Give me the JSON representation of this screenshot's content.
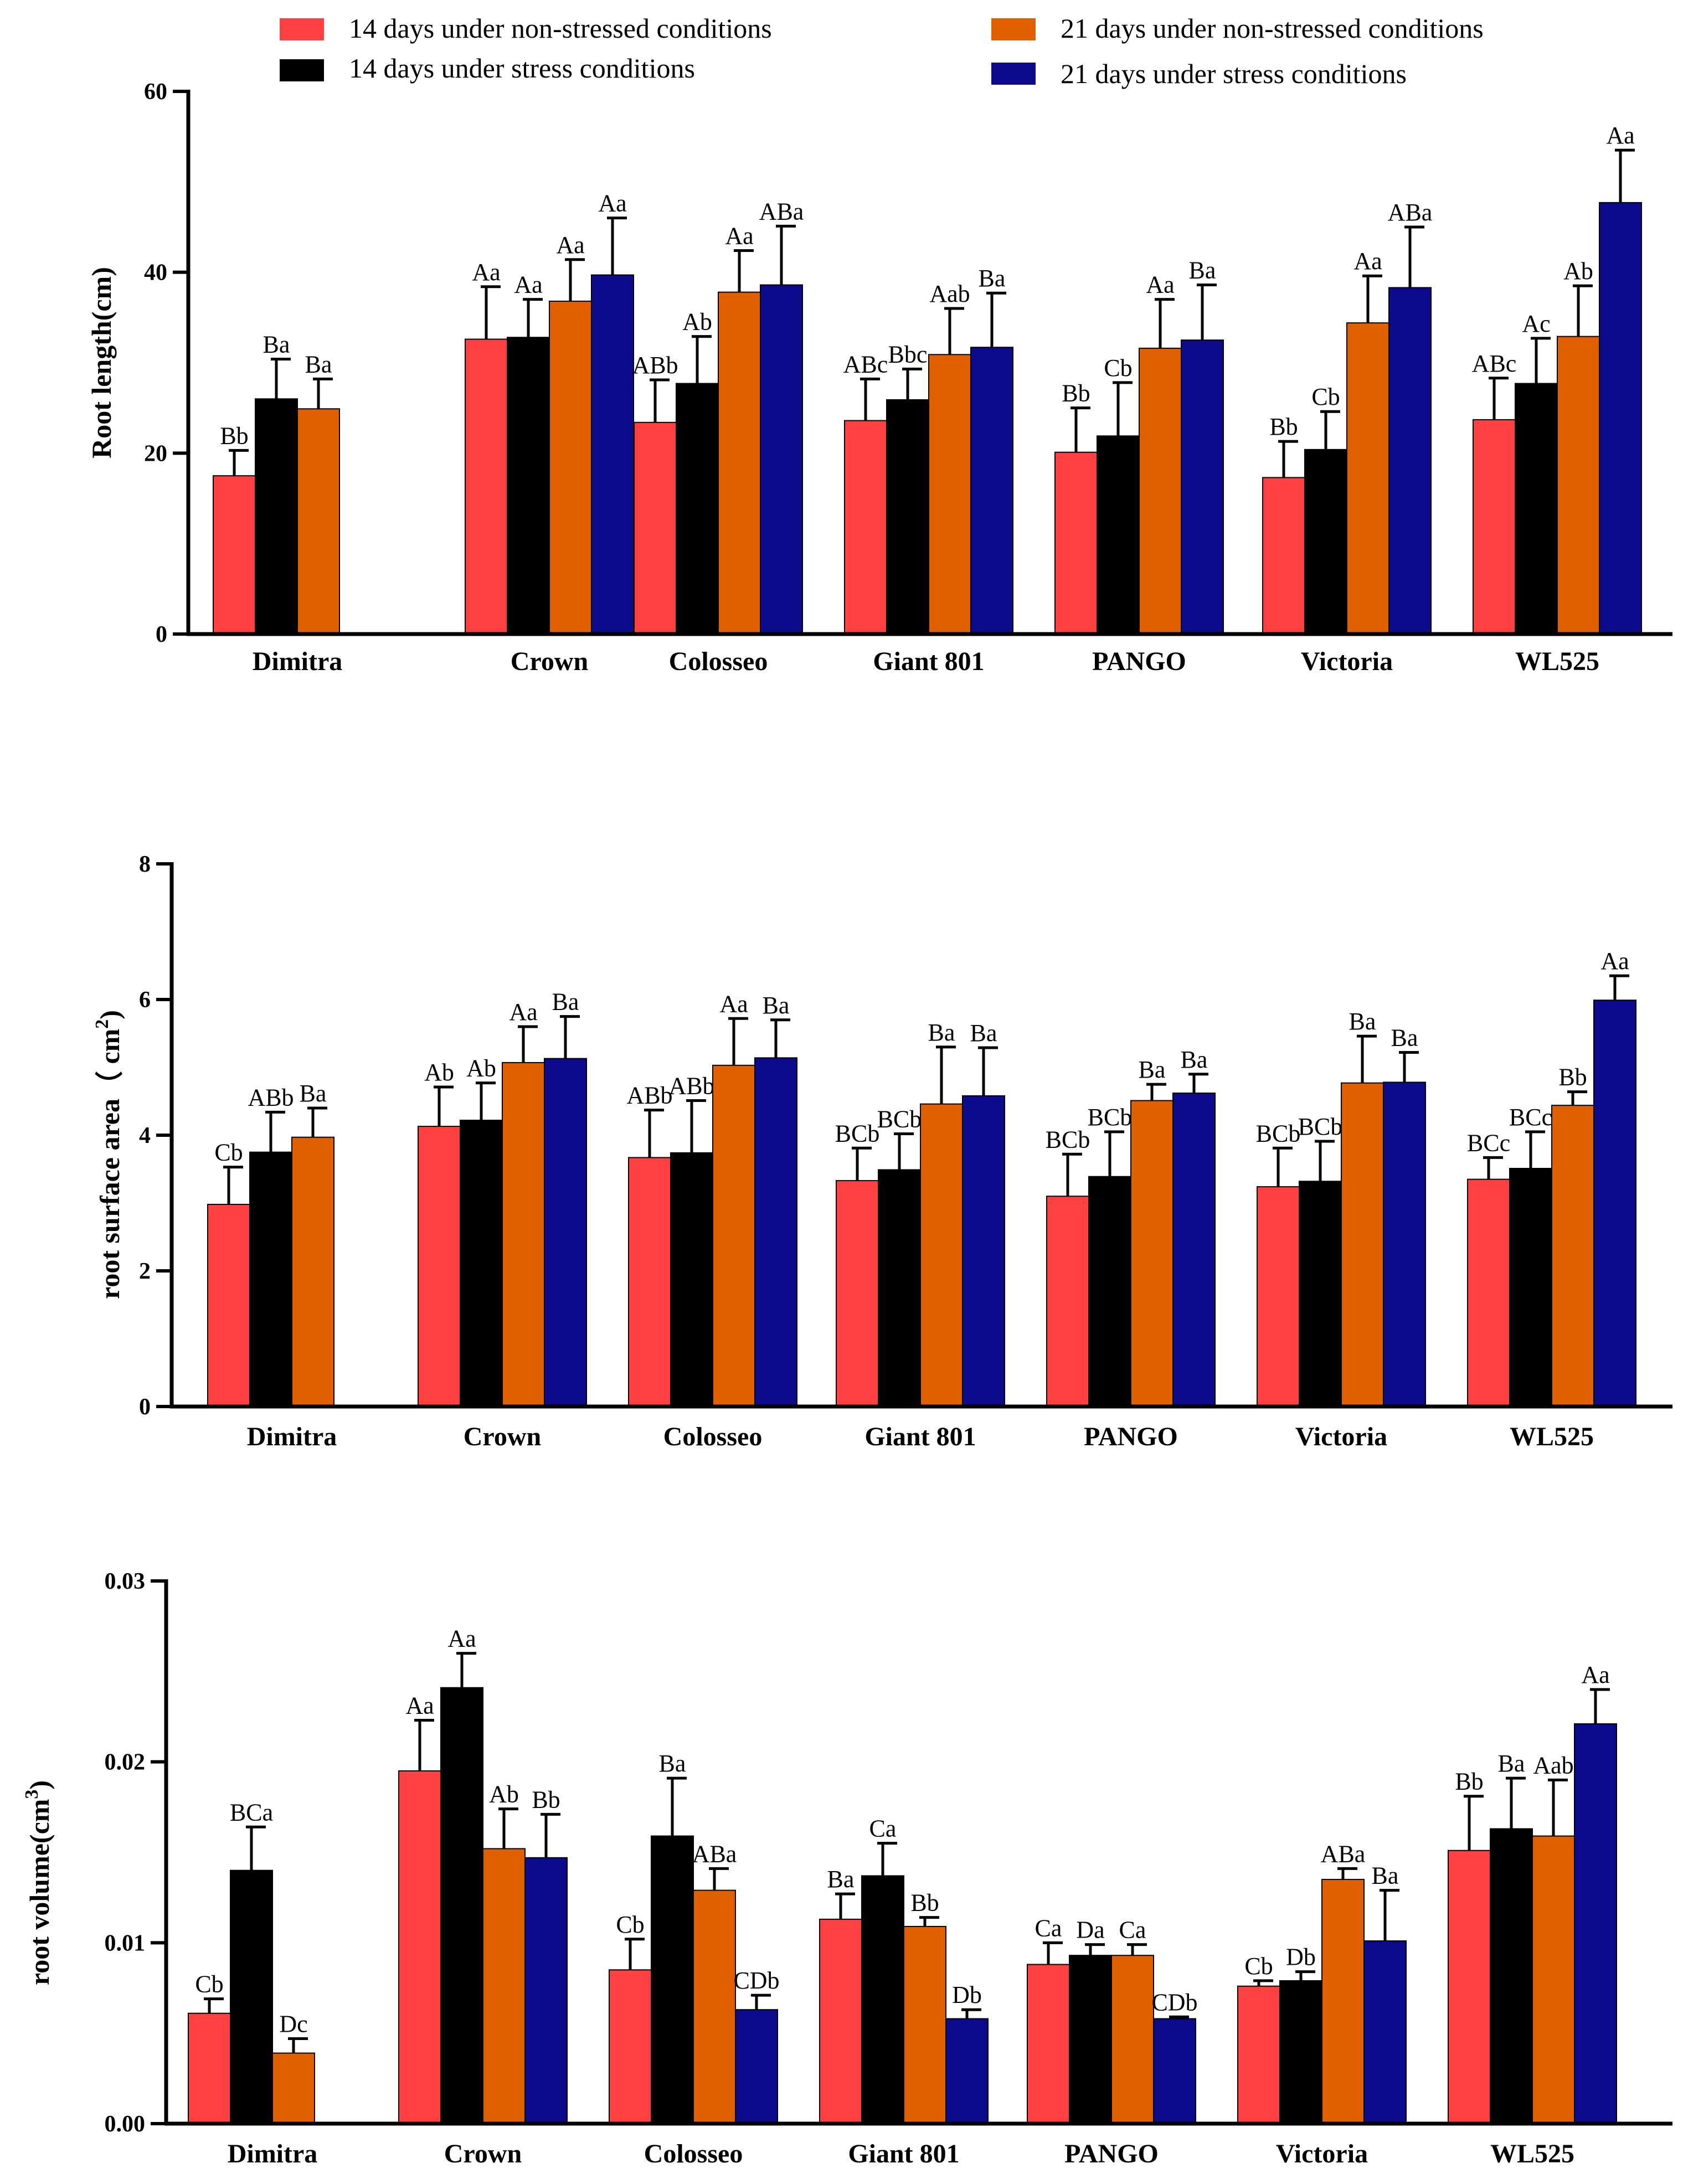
{
  "legend": [
    {
      "label": "14 days under non-stressed conditions",
      "color": "#FF4040"
    },
    {
      "label": "14 days under stress conditions",
      "color": "#000000"
    },
    {
      "label": "21 days under non-stressed conditions",
      "color": "#E06000"
    },
    {
      "label": "21 days under stress conditions",
      "color": "#0B0B8B"
    }
  ],
  "chart_data": [
    {
      "type": "bar",
      "title": "",
      "xlabel": "",
      "ylabel": "Root length(cm)",
      "ylim": [
        0,
        60
      ],
      "yticks": [
        0,
        20,
        40,
        60
      ],
      "ytick_labels": [
        "0",
        "20",
        "40",
        "60"
      ],
      "categories": [
        "Dimitra",
        "Crown",
        "Colosseo",
        "Giant 801",
        "PANGO",
        "Victoria",
        "WL525"
      ],
      "series": [
        {
          "name": "14 days under non-stressed conditions",
          "values": [
            17.5,
            32.6,
            23.4,
            23.6,
            20.1,
            17.3,
            23.7
          ],
          "errors": [
            2.8,
            5.8,
            4.7,
            4.6,
            4.9,
            4.0,
            4.6
          ],
          "labels": [
            "Bb",
            "Aa",
            "ABb",
            "ABc",
            "Bb",
            "Bb",
            "ABc"
          ]
        },
        {
          "name": "14 days under stress conditions",
          "values": [
            26.0,
            32.8,
            27.7,
            25.9,
            21.9,
            20.4,
            27.7
          ],
          "errors": [
            4.4,
            4.2,
            5.2,
            3.4,
            5.9,
            4.2,
            5.0
          ],
          "labels": [
            "Ba",
            "Aa",
            "Ab",
            "Bbc",
            "Cb",
            "Cb",
            "Ac"
          ]
        },
        {
          "name": "21 days under non-stressed conditions",
          "values": [
            24.9,
            36.8,
            37.8,
            30.9,
            31.6,
            34.4,
            32.9
          ],
          "errors": [
            3.3,
            4.6,
            4.6,
            5.1,
            5.4,
            5.2,
            5.6
          ],
          "labels": [
            "Ba",
            "Aa",
            "Aa",
            "Aab",
            "Aa",
            "Aa",
            "Ab"
          ]
        },
        {
          "name": "21 days under stress conditions",
          "values": [
            null,
            39.7,
            38.6,
            31.7,
            32.5,
            38.3,
            47.7
          ],
          "errors": [
            null,
            6.3,
            6.5,
            6.0,
            6.1,
            6.7,
            5.8
          ],
          "labels": [
            "",
            "Aa",
            "ABa",
            "Ba",
            "Ba",
            "ABa",
            "Aa"
          ]
        }
      ]
    },
    {
      "type": "bar",
      "title": "",
      "xlabel": "",
      "ylabel": "root surface area（ cm",
      "ylabel_sup": "2",
      "ylabel_end": ")",
      "ylim": [
        0,
        8
      ],
      "yticks": [
        0,
        2,
        4,
        6,
        8
      ],
      "ytick_labels": [
        "0",
        "2",
        "4",
        "6",
        "8"
      ],
      "categories": [
        "Dimitra",
        "Crown",
        "Colosseo",
        "Giant 801",
        "PANGO",
        "Victoria",
        "WL525"
      ],
      "series": [
        {
          "name": "14 days under non-stressed conditions",
          "values": [
            2.98,
            4.13,
            3.67,
            3.33,
            3.1,
            3.24,
            3.35
          ],
          "errors": [
            0.55,
            0.58,
            0.7,
            0.48,
            0.62,
            0.57,
            0.32
          ],
          "labels": [
            "Cb",
            "Ab",
            "ABb",
            "BCb",
            "BCb",
            "BCb",
            "BCc"
          ]
        },
        {
          "name": "14 days under stress conditions",
          "values": [
            3.75,
            4.22,
            3.74,
            3.49,
            3.39,
            3.32,
            3.51
          ],
          "errors": [
            0.59,
            0.55,
            0.77,
            0.53,
            0.66,
            0.59,
            0.54
          ],
          "labels": [
            "ABb",
            "Ab",
            "ABb",
            "BCb",
            "BCb",
            "BCb",
            "BCc"
          ]
        },
        {
          "name": "21 days under non-stressed conditions",
          "values": [
            3.97,
            5.07,
            5.03,
            4.46,
            4.51,
            4.77,
            4.44
          ],
          "errors": [
            0.43,
            0.53,
            0.69,
            0.84,
            0.24,
            0.69,
            0.2
          ],
          "labels": [
            "Ba",
            "Aa",
            "Aa",
            "Ba",
            "Ba",
            "Ba",
            "Bb"
          ]
        },
        {
          "name": "21 days under stress conditions",
          "values": [
            null,
            5.13,
            5.14,
            4.58,
            4.62,
            4.78,
            5.99
          ],
          "errors": [
            null,
            0.62,
            0.56,
            0.71,
            0.28,
            0.44,
            0.36
          ],
          "labels": [
            "",
            "Ba",
            "Ba",
            "Ba",
            "Ba",
            "Ba",
            "Aa"
          ]
        }
      ]
    },
    {
      "type": "bar",
      "title": "",
      "xlabel": "",
      "ylabel": "root volume(cm",
      "ylabel_sup": "3",
      "ylabel_end": ")",
      "ylim": [
        0,
        0.03
      ],
      "yticks": [
        0,
        0.01,
        0.02,
        0.03
      ],
      "ytick_labels": [
        "0.00",
        "0.01",
        "0.02",
        "0.03"
      ],
      "categories": [
        "Dimitra",
        "Crown",
        "Colosseo",
        "Giant 801",
        "PANGO",
        "Victoria",
        "WL525"
      ],
      "series": [
        {
          "name": "14 days under non-stressed conditions",
          "values": [
            0.0061,
            0.0195,
            0.0085,
            0.0113,
            0.0088,
            0.0076,
            0.0151
          ],
          "errors": [
            0.0008,
            0.0028,
            0.0017,
            0.0014,
            0.0012,
            0.0003,
            0.003
          ],
          "labels": [
            "Cb",
            "Aa",
            "Cb",
            "Ba",
            "Ca",
            "Cb",
            "Bb"
          ]
        },
        {
          "name": "14 days under stress conditions",
          "values": [
            0.014,
            0.0241,
            0.0159,
            0.0137,
            0.0093,
            0.0079,
            0.0163
          ],
          "errors": [
            0.0024,
            0.0019,
            0.0032,
            0.0018,
            0.0006,
            0.0005,
            0.0028
          ],
          "labels": [
            "BCa",
            "Aa",
            "Ba",
            "Ca",
            "Da",
            "Db",
            "Ba"
          ]
        },
        {
          "name": "21 days under non-stressed conditions",
          "values": [
            0.0039,
            0.0152,
            0.0129,
            0.0109,
            0.0093,
            0.0135,
            0.0159
          ],
          "errors": [
            0.0008,
            0.0022,
            0.0012,
            0.0005,
            0.0006,
            0.0006,
            0.0031
          ],
          "labels": [
            "Dc",
            "Ab",
            "ABa",
            "Bb",
            "Ca",
            "ABa",
            "Aab"
          ]
        },
        {
          "name": "21 days under stress conditions",
          "values": [
            null,
            0.0147,
            0.0063,
            0.0058,
            0.0058,
            0.0101,
            0.0221
          ],
          "errors": [
            null,
            0.0024,
            0.0008,
            0.0005,
            0.0001,
            0.0028,
            0.0019
          ],
          "labels": [
            "",
            "Bb",
            "CDb",
            "Db",
            "CDb",
            "Ba",
            "Aa"
          ]
        }
      ]
    }
  ]
}
